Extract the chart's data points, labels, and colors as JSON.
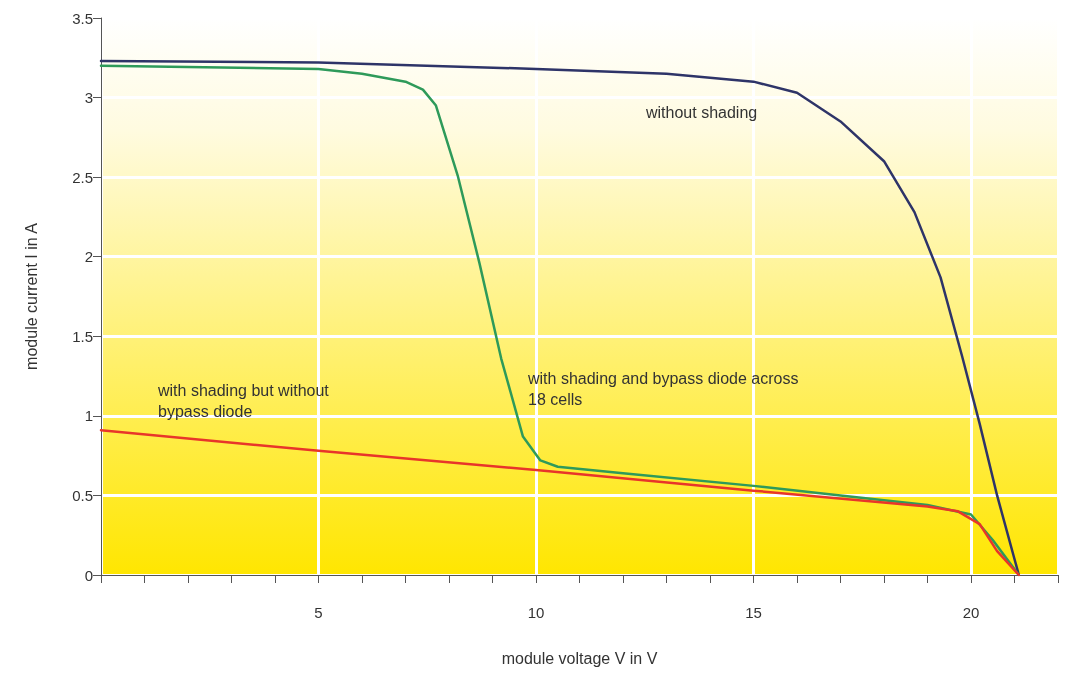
{
  "chart_data": {
    "type": "line",
    "xlabel": "module voltage V in V",
    "ylabel": "module current I in A",
    "series": [
      {
        "name": "without shading",
        "color": "#2e3468",
        "x": [
          0,
          5,
          10,
          13,
          15,
          16,
          17,
          18,
          18.7,
          19.3,
          19.8,
          20.2,
          20.6,
          21.1
        ],
        "values": [
          3.23,
          3.22,
          3.18,
          3.15,
          3.1,
          3.03,
          2.85,
          2.6,
          2.28,
          1.87,
          1.37,
          0.95,
          0.5,
          0
        ]
      },
      {
        "name": "with shading and bypass diode across 18 cells",
        "color": "#2e9a5a",
        "x": [
          0,
          5,
          6,
          7,
          7.4,
          7.7,
          8.2,
          8.7,
          9.2,
          9.7,
          10.1,
          10.5,
          12,
          15,
          17,
          19,
          20,
          20.5,
          21.1
        ],
        "values": [
          3.2,
          3.18,
          3.15,
          3.1,
          3.05,
          2.95,
          2.51,
          1.96,
          1.36,
          0.87,
          0.72,
          0.68,
          0.64,
          0.56,
          0.5,
          0.44,
          0.38,
          0.22,
          0
        ]
      },
      {
        "name": "with shading but without bypass diode",
        "color": "#e8352a",
        "x": [
          0,
          5,
          10,
          15,
          19,
          19.7,
          20.2,
          20.6,
          21.1
        ],
        "values": [
          0.91,
          0.78,
          0.66,
          0.53,
          0.43,
          0.4,
          0.32,
          0.15,
          0
        ]
      }
    ],
    "xlim": [
      0,
      22
    ],
    "xticks": [
      {
        "value": 0,
        "label": null
      },
      {
        "value": 1,
        "label": null
      },
      {
        "value": 2,
        "label": null
      },
      {
        "value": 3,
        "label": null
      },
      {
        "value": 4,
        "label": null
      },
      5,
      {
        "value": 6,
        "label": null
      },
      {
        "value": 7,
        "label": null
      },
      {
        "value": 8,
        "label": null
      },
      {
        "value": 9,
        "label": null
      },
      10,
      {
        "value": 11,
        "label": null
      },
      {
        "value": 12,
        "label": null
      },
      {
        "value": 13,
        "label": null
      },
      {
        "value": 14,
        "label": null
      },
      15,
      {
        "value": 16,
        "label": null
      },
      {
        "value": 17,
        "label": null
      },
      {
        "value": 18,
        "label": null
      },
      {
        "value": 19,
        "label": null
      },
      20,
      {
        "value": 21,
        "label": null
      },
      {
        "value": 22,
        "label": null
      }
    ],
    "ylim": [
      0,
      3.5
    ],
    "yticks": [
      0,
      0.5,
      1,
      1.5,
      2,
      2.5,
      3,
      3.5
    ],
    "grid": true,
    "marker": "none",
    "line_style": "solid"
  }
}
